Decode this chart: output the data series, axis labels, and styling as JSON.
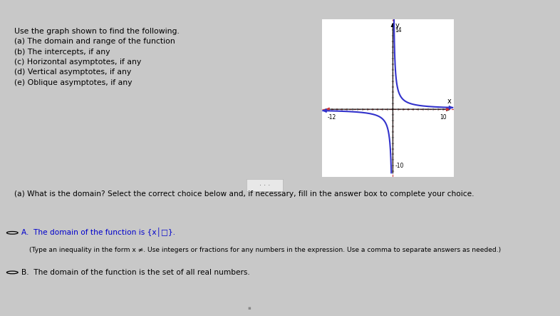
{
  "bg_top_color": "#4a90c4",
  "bg_color": "#c8c8c8",
  "panel_color": "#f0f0f0",
  "white_color": "#ffffff",
  "text_color": "#000000",
  "title_lines": [
    "Use the graph shown to find the following.",
    "(a) The domain and range of the function",
    "(b) The intercepts, if any",
    "(c) Horizontal asymptotes, if any",
    "(d) Vertical asymptotes, if any",
    "(e) Oblique asymptotes, if any"
  ],
  "question_text": "(a) What is the domain? Select the correct choice below and, if necessary, fill in the answer box to complete your choice.",
  "choice_A_main": "A.  The domain of the function is {x│□}.",
  "choice_A_sub": "(Type an inequality in the form x ≠. Use integers or fractions for any numbers in the expression. Use a comma to separate answers as needed.)",
  "choice_B": "B.  The domain of the function is the set of all real numbers.",
  "graph": {
    "xlim": [
      -14,
      12
    ],
    "ylim": [
      -12,
      16
    ],
    "xlabel": "x",
    "ylabel": "y",
    "curve_color": "#3333cc",
    "asymptote_color": "#cc3333",
    "curve_scale": 3.5
  },
  "separator_color": "#aaaaaa",
  "radio_color": "#000000",
  "choice_A_color": "#0000cc",
  "choice_B_color": "#000000",
  "yellow_bar_color": "#e8c840",
  "top_bar_color": "#5599cc"
}
